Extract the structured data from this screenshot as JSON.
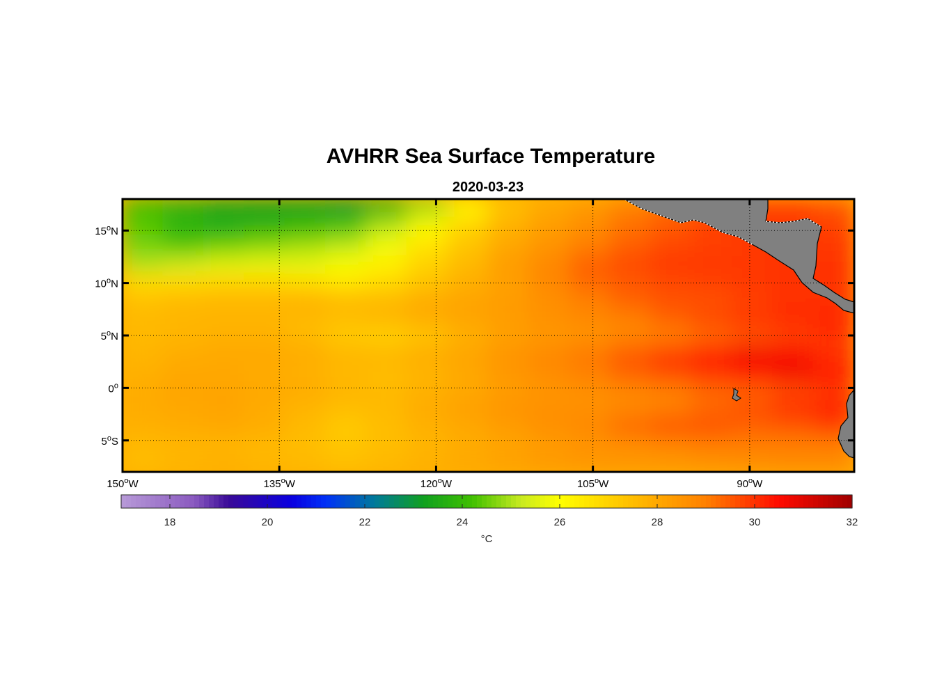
{
  "title": "AVHRR Sea Surface Temperature",
  "subtitle": "2020-03-23",
  "map": {
    "lon_range": [
      -150,
      -80
    ],
    "lat_range": [
      -8,
      18
    ],
    "lon_ticks": [
      {
        "value": -150,
        "num": "150",
        "hemi": "W"
      },
      {
        "value": -135,
        "num": "135",
        "hemi": "W"
      },
      {
        "value": -120,
        "num": "120",
        "hemi": "W"
      },
      {
        "value": -105,
        "num": "105",
        "hemi": "W"
      },
      {
        "value": -90,
        "num": "90",
        "hemi": "W"
      }
    ],
    "lat_ticks": [
      {
        "value": 15,
        "num": "15",
        "hemi": "N"
      },
      {
        "value": 10,
        "num": "10",
        "hemi": "N"
      },
      {
        "value": 5,
        "num": "5",
        "hemi": "N"
      },
      {
        "value": 0,
        "num": "0",
        "hemi": ""
      },
      {
        "value": -5,
        "num": "5",
        "hemi": "S"
      }
    ],
    "grid": "dotted",
    "land_color": "#808080"
  },
  "colorbar": {
    "min": 17,
    "max": 32,
    "ticks": [
      18,
      20,
      22,
      24,
      26,
      28,
      30,
      32
    ],
    "unit_label": "°C",
    "stops": [
      {
        "value": 17,
        "color": "#b89ad8"
      },
      {
        "value": 18.5,
        "color": "#8a5ac0"
      },
      {
        "value": 19.2,
        "color": "#3a0a98"
      },
      {
        "value": 20.5,
        "color": "#0a00e0"
      },
      {
        "value": 21.2,
        "color": "#0030f8"
      },
      {
        "value": 22.2,
        "color": "#007a9a"
      },
      {
        "value": 23.2,
        "color": "#10a020"
      },
      {
        "value": 24.2,
        "color": "#40c000"
      },
      {
        "value": 25.2,
        "color": "#c8ea20"
      },
      {
        "value": 26.0,
        "color": "#ffff00"
      },
      {
        "value": 27.0,
        "color": "#ffd200"
      },
      {
        "value": 28.0,
        "color": "#ffa800"
      },
      {
        "value": 29.0,
        "color": "#ff8000"
      },
      {
        "value": 30.5,
        "color": "#ff0a00"
      },
      {
        "value": 32,
        "color": "#a00000"
      }
    ]
  },
  "sst_field": [
    [
      27.5,
      27.7,
      27.8,
      27.7,
      27.6,
      27.4,
      27.6,
      27.8,
      28.0,
      28.2,
      28.4,
      28.5,
      28.5,
      28.5,
      28.6,
      28.7,
      28.8,
      28.8
    ],
    [
      27.6,
      27.7,
      27.7,
      27.6,
      27.5,
      27.3,
      27.5,
      27.7,
      27.9,
      28.1,
      28.3,
      28.5,
      28.6,
      28.8,
      29.0,
      29.0,
      29.0,
      29.0
    ],
    [
      27.8,
      27.9,
      28.0,
      27.9,
      27.6,
      27.2,
      27.5,
      27.8,
      28.0,
      28.3,
      28.6,
      28.8,
      29.3,
      29.6,
      29.6,
      29.4,
      29.5,
      29.8
    ],
    [
      27.9,
      28.0,
      28.1,
      27.9,
      27.7,
      27.5,
      27.6,
      27.9,
      28.2,
      28.5,
      28.6,
      28.6,
      28.8,
      29.0,
      29.3,
      29.6,
      30.0,
      30.2
    ],
    [
      27.9,
      28.1,
      28.1,
      28.0,
      27.9,
      27.7,
      27.6,
      27.8,
      28.0,
      28.3,
      28.5,
      28.6,
      28.8,
      29.0,
      29.3,
      29.4,
      29.7,
      29.9
    ],
    [
      27.8,
      28.0,
      28.0,
      27.9,
      27.8,
      27.6,
      27.5,
      27.7,
      28.0,
      28.4,
      28.7,
      29.0,
      29.4,
      29.7,
      30.0,
      30.4,
      30.7,
      30.4
    ],
    [
      27.7,
      27.9,
      28.0,
      28.0,
      27.9,
      27.7,
      27.7,
      27.9,
      28.1,
      28.5,
      28.8,
      29.1,
      29.5,
      29.9,
      30.3,
      30.7,
      30.6,
      30.0
    ],
    [
      27.6,
      27.7,
      27.8,
      27.8,
      27.6,
      27.2,
      27.0,
      27.3,
      27.8,
      28.2,
      28.4,
      28.5,
      28.8,
      29.0,
      29.3,
      29.6,
      29.8,
      30.0
    ],
    [
      27.6,
      27.7,
      27.7,
      27.7,
      27.6,
      27.5,
      27.7,
      27.9,
      28.1,
      28.3,
      28.6,
      28.8,
      29.0,
      29.4,
      29.7,
      29.9,
      30.1,
      30.2
    ],
    [
      27.4,
      27.6,
      27.7,
      27.7,
      27.8,
      27.6,
      27.6,
      27.9,
      28.1,
      28.3,
      28.6,
      29.0,
      29.4,
      29.6,
      29.6,
      29.8,
      30.0,
      30.0
    ],
    [
      26.8,
      26.8,
      26.9,
      26.9,
      26.7,
      26.5,
      26.8,
      27.3,
      27.8,
      28.2,
      28.8,
      29.3,
      29.5,
      29.7,
      29.8,
      29.9,
      30.0,
      30.0
    ],
    [
      25.0,
      25.2,
      25.5,
      25.6,
      25.6,
      25.9,
      26.3,
      27.0,
      27.6,
      28.3,
      28.8,
      29.4,
      29.7,
      29.9,
      29.9,
      29.9,
      30.0,
      30.0
    ],
    [
      24.6,
      24.3,
      24.5,
      24.7,
      24.9,
      25.1,
      25.8,
      26.6,
      27.3,
      28.0,
      28.5,
      29.0,
      29.4,
      29.7,
      29.8,
      29.9,
      29.9,
      29.9
    ],
    [
      24.4,
      23.8,
      23.6,
      23.8,
      24.0,
      24.3,
      25.1,
      26.1,
      27.0,
      27.8,
      28.3,
      28.7,
      29.2,
      29.5,
      29.8,
      29.9,
      29.9,
      29.8
    ],
    [
      24.2,
      23.8,
      23.4,
      23.3,
      23.3,
      23.1,
      23.8,
      24.9,
      26.2,
      27.4,
      28.0,
      28.4,
      29.0,
      29.3,
      29.6,
      29.8,
      29.8,
      29.6
    ]
  ],
  "nan_label": ""
}
